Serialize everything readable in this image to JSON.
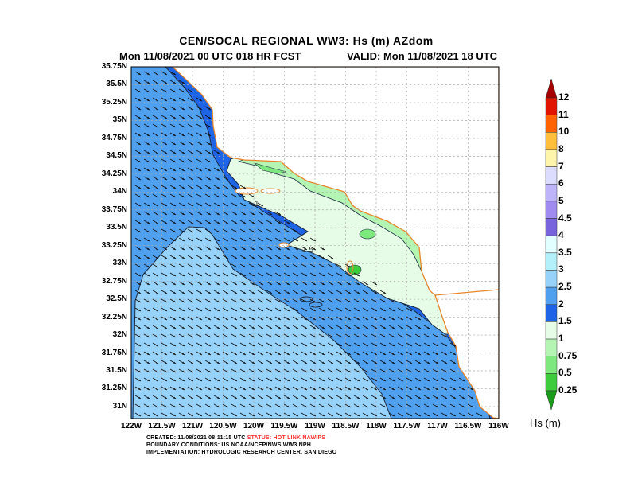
{
  "header": {
    "title": "CEN/SOCAL REGIONAL WW3: Hs (m) AZdom",
    "subtitle": "Mon 11/08/2021 00 UTC 018 HR FCST",
    "valid": "VALID: Mon 11/08/2021 18 UTC"
  },
  "map": {
    "lat_labels": [
      "35.75N",
      "35.5N",
      "35.25N",
      "35N",
      "34.75N",
      "34.5N",
      "34.25N",
      "34N",
      "33.75N",
      "33.5N",
      "33.25N",
      "33N",
      "32.75N",
      "32.5N",
      "32.25N",
      "32N",
      "31.75N",
      "31.5N",
      "31.25N",
      "31N"
    ],
    "lon_labels": [
      "122W",
      "121.5W",
      "121W",
      "120.5W",
      "120W",
      "119.5W",
      "119W",
      "118.5W",
      "118W",
      "117.5W",
      "117W",
      "116.5W",
      "116W"
    ],
    "contour_labels": [
      "1",
      "1.5"
    ],
    "colors": {
      "land": "#ffffff",
      "coast": "#e8862a",
      "grid": "#b0b0b0"
    }
  },
  "legend": {
    "title": "Hs (m)",
    "labels": [
      "12",
      "11",
      "10",
      "8",
      "7",
      "6",
      "5",
      "4.5",
      "4",
      "3.5",
      "3",
      "2.5",
      "2",
      "1.5",
      "1",
      "0.75",
      "0.5",
      "0.25"
    ],
    "colors_top_to_bottom": [
      "#a50000",
      "#e01400",
      "#ff6400",
      "#ffbe3c",
      "#fff5aa",
      "#dcdcff",
      "#beb4fa",
      "#a08cf0",
      "#7864dc",
      "#e1ffff",
      "#b4f0fa",
      "#96d2fa",
      "#50a0f0",
      "#1e64e6",
      "#e6fce6",
      "#b4f5b4",
      "#7de87d",
      "#3ccc3c",
      "#1a9a1a"
    ]
  },
  "footer": {
    "created": "CREATED: 11/08/2021 08:11:15 UTC",
    "status": "STATUS: HOT LINK NAWIPS",
    "boundary": "BOUNDARY CONDITIONS: US NOAA/NCEP/NWS WW3 NPH",
    "implementation": "IMPLEMENTATION: HYDROLOGIC RESEARCH CENTER, SAN DIEGO",
    "status_color": "#ff3030"
  }
}
